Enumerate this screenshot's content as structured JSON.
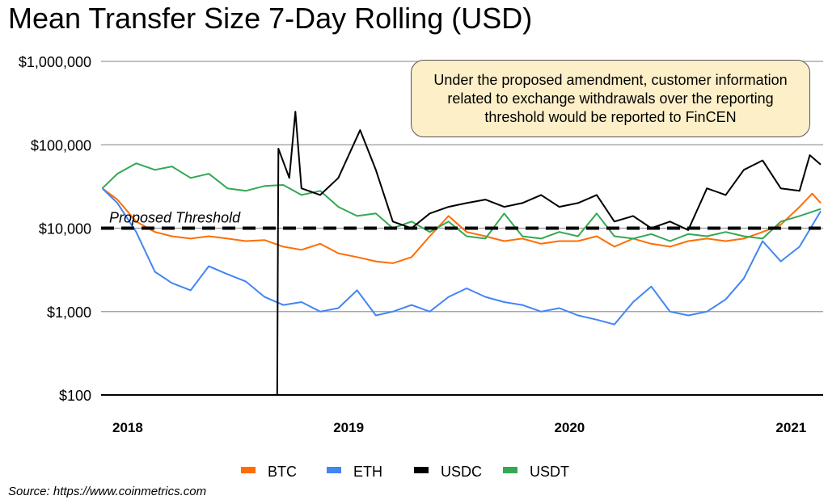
{
  "chart_data": {
    "type": "line",
    "title": "Mean Transfer Size 7-Day Rolling (USD)",
    "yscale": "log",
    "ylim": [
      100,
      1000000
    ],
    "xlim": [
      "2017-11-18",
      "2021-02-19"
    ],
    "y_ticks": [
      {
        "value": 1000000,
        "label": "$1,000,000"
      },
      {
        "value": 100000,
        "label": "$100,000"
      },
      {
        "value": 10000,
        "label": "$10,000"
      },
      {
        "value": 1000,
        "label": "$1,000"
      },
      {
        "value": 100,
        "label": "$100"
      }
    ],
    "x_ticks": [
      {
        "value": "2018-01-01",
        "label": "2018"
      },
      {
        "value": "2019-01-01",
        "label": "2019"
      },
      {
        "value": "2020-01-01",
        "label": "2020"
      },
      {
        "value": "2021-01-01",
        "label": "2021"
      }
    ],
    "grid": true,
    "legend_placement": "bottom",
    "threshold": {
      "value": 10000,
      "label": "Proposed Threshold",
      "style": "dashed",
      "color": "#000000"
    },
    "annotation": "Under the proposed amendment, customer information related to exchange withdrawals over the reporting threshold would be reported to FinCEN",
    "source": "Source: https://www.coinmetrics.com",
    "series": [
      {
        "name": "BTC",
        "color": "#ff6d01",
        "points": [
          [
            "2017-11-20",
            30000
          ],
          [
            "2017-12-15",
            22000
          ],
          [
            "2018-01-15",
            12000
          ],
          [
            "2018-02-15",
            9000
          ],
          [
            "2018-03-15",
            8000
          ],
          [
            "2018-04-15",
            7500
          ],
          [
            "2018-05-15",
            8000
          ],
          [
            "2018-06-15",
            7500
          ],
          [
            "2018-07-15",
            7000
          ],
          [
            "2018-08-15",
            7200
          ],
          [
            "2018-09-15",
            6000
          ],
          [
            "2018-10-15",
            5500
          ],
          [
            "2018-11-15",
            6500
          ],
          [
            "2018-12-15",
            5000
          ],
          [
            "2019-01-15",
            4500
          ],
          [
            "2019-02-15",
            4000
          ],
          [
            "2019-03-15",
            3800
          ],
          [
            "2019-04-15",
            4500
          ],
          [
            "2019-05-15",
            8000
          ],
          [
            "2019-06-15",
            14000
          ],
          [
            "2019-07-15",
            9000
          ],
          [
            "2019-08-15",
            8000
          ],
          [
            "2019-09-15",
            7000
          ],
          [
            "2019-10-15",
            7500
          ],
          [
            "2019-11-15",
            6500
          ],
          [
            "2019-12-15",
            7000
          ],
          [
            "2020-01-15",
            7000
          ],
          [
            "2020-02-15",
            8000
          ],
          [
            "2020-03-15",
            6000
          ],
          [
            "2020-04-15",
            7500
          ],
          [
            "2020-05-15",
            6500
          ],
          [
            "2020-06-15",
            6000
          ],
          [
            "2020-07-15",
            7000
          ],
          [
            "2020-08-15",
            7500
          ],
          [
            "2020-09-15",
            7000
          ],
          [
            "2020-10-15",
            7500
          ],
          [
            "2020-11-15",
            9000
          ],
          [
            "2020-12-15",
            11000
          ],
          [
            "2021-01-15",
            18000
          ],
          [
            "2021-02-05",
            26000
          ],
          [
            "2021-02-19",
            20000
          ]
        ]
      },
      {
        "name": "ETH",
        "color": "#4285f4",
        "points": [
          [
            "2017-11-20",
            30000
          ],
          [
            "2017-12-15",
            20000
          ],
          [
            "2018-01-15",
            9000
          ],
          [
            "2018-02-15",
            3000
          ],
          [
            "2018-03-15",
            2200
          ],
          [
            "2018-04-15",
            1800
          ],
          [
            "2018-05-15",
            3500
          ],
          [
            "2018-06-15",
            2800
          ],
          [
            "2018-07-15",
            2300
          ],
          [
            "2018-08-15",
            1500
          ],
          [
            "2018-09-15",
            1200
          ],
          [
            "2018-10-15",
            1300
          ],
          [
            "2018-11-15",
            1000
          ],
          [
            "2018-12-15",
            1100
          ],
          [
            "2019-01-15",
            1800
          ],
          [
            "2019-02-15",
            900
          ],
          [
            "2019-03-15",
            1000
          ],
          [
            "2019-04-15",
            1200
          ],
          [
            "2019-05-15",
            1000
          ],
          [
            "2019-06-15",
            1500
          ],
          [
            "2019-07-15",
            1900
          ],
          [
            "2019-08-15",
            1500
          ],
          [
            "2019-09-15",
            1300
          ],
          [
            "2019-10-15",
            1200
          ],
          [
            "2019-11-15",
            1000
          ],
          [
            "2019-12-15",
            1100
          ],
          [
            "2020-01-15",
            900
          ],
          [
            "2020-02-15",
            800
          ],
          [
            "2020-03-15",
            700
          ],
          [
            "2020-04-15",
            1300
          ],
          [
            "2020-05-15",
            2000
          ],
          [
            "2020-06-15",
            1000
          ],
          [
            "2020-07-15",
            900
          ],
          [
            "2020-08-15",
            1000
          ],
          [
            "2020-09-15",
            1400
          ],
          [
            "2020-10-15",
            2500
          ],
          [
            "2020-11-15",
            7000
          ],
          [
            "2020-12-15",
            4000
          ],
          [
            "2021-01-15",
            6000
          ],
          [
            "2021-02-19",
            16000
          ]
        ]
      },
      {
        "name": "USDC",
        "color": "#000000",
        "points": [
          [
            "2018-09-05",
            100
          ],
          [
            "2018-09-07",
            90000
          ],
          [
            "2018-09-25",
            40000
          ],
          [
            "2018-10-05",
            250000
          ],
          [
            "2018-10-15",
            30000
          ],
          [
            "2018-11-15",
            25000
          ],
          [
            "2018-12-15",
            40000
          ],
          [
            "2019-01-20",
            150000
          ],
          [
            "2019-02-15",
            50000
          ],
          [
            "2019-03-15",
            12000
          ],
          [
            "2019-04-15",
            10000
          ],
          [
            "2019-05-15",
            15000
          ],
          [
            "2019-06-15",
            18000
          ],
          [
            "2019-07-15",
            20000
          ],
          [
            "2019-08-15",
            22000
          ],
          [
            "2019-09-15",
            18000
          ],
          [
            "2019-10-15",
            20000
          ],
          [
            "2019-11-15",
            25000
          ],
          [
            "2019-12-15",
            18000
          ],
          [
            "2020-01-15",
            20000
          ],
          [
            "2020-02-15",
            25000
          ],
          [
            "2020-03-15",
            12000
          ],
          [
            "2020-04-15",
            14000
          ],
          [
            "2020-05-15",
            10000
          ],
          [
            "2020-06-15",
            12000
          ],
          [
            "2020-07-15",
            9500
          ],
          [
            "2020-08-15",
            30000
          ],
          [
            "2020-09-15",
            25000
          ],
          [
            "2020-10-15",
            50000
          ],
          [
            "2020-11-15",
            65000
          ],
          [
            "2020-12-15",
            30000
          ],
          [
            "2021-01-15",
            28000
          ],
          [
            "2021-02-01",
            75000
          ],
          [
            "2021-02-19",
            58000
          ]
        ]
      },
      {
        "name": "USDT",
        "color": "#34a853",
        "points": [
          [
            "2017-11-20",
            30000
          ],
          [
            "2017-12-15",
            45000
          ],
          [
            "2018-01-15",
            60000
          ],
          [
            "2018-02-15",
            50000
          ],
          [
            "2018-03-15",
            55000
          ],
          [
            "2018-04-15",
            40000
          ],
          [
            "2018-05-15",
            45000
          ],
          [
            "2018-06-15",
            30000
          ],
          [
            "2018-07-15",
            28000
          ],
          [
            "2018-08-15",
            32000
          ],
          [
            "2018-09-15",
            33000
          ],
          [
            "2018-10-15",
            25000
          ],
          [
            "2018-11-15",
            28000
          ],
          [
            "2018-12-15",
            18000
          ],
          [
            "2019-01-15",
            14000
          ],
          [
            "2019-02-15",
            15000
          ],
          [
            "2019-03-15",
            10000
          ],
          [
            "2019-04-15",
            12000
          ],
          [
            "2019-05-15",
            9000
          ],
          [
            "2019-06-15",
            12000
          ],
          [
            "2019-07-15",
            8000
          ],
          [
            "2019-08-15",
            7500
          ],
          [
            "2019-09-15",
            15000
          ],
          [
            "2019-10-15",
            8000
          ],
          [
            "2019-11-15",
            7500
          ],
          [
            "2019-12-15",
            9000
          ],
          [
            "2020-01-15",
            8000
          ],
          [
            "2020-02-15",
            15000
          ],
          [
            "2020-03-15",
            8000
          ],
          [
            "2020-04-15",
            7500
          ],
          [
            "2020-05-15",
            8500
          ],
          [
            "2020-06-15",
            7000
          ],
          [
            "2020-07-15",
            8500
          ],
          [
            "2020-08-15",
            8000
          ],
          [
            "2020-09-15",
            9000
          ],
          [
            "2020-10-15",
            8000
          ],
          [
            "2020-11-15",
            7500
          ],
          [
            "2020-12-15",
            12000
          ],
          [
            "2021-01-15",
            14000
          ],
          [
            "2021-02-19",
            17000
          ]
        ]
      }
    ]
  }
}
